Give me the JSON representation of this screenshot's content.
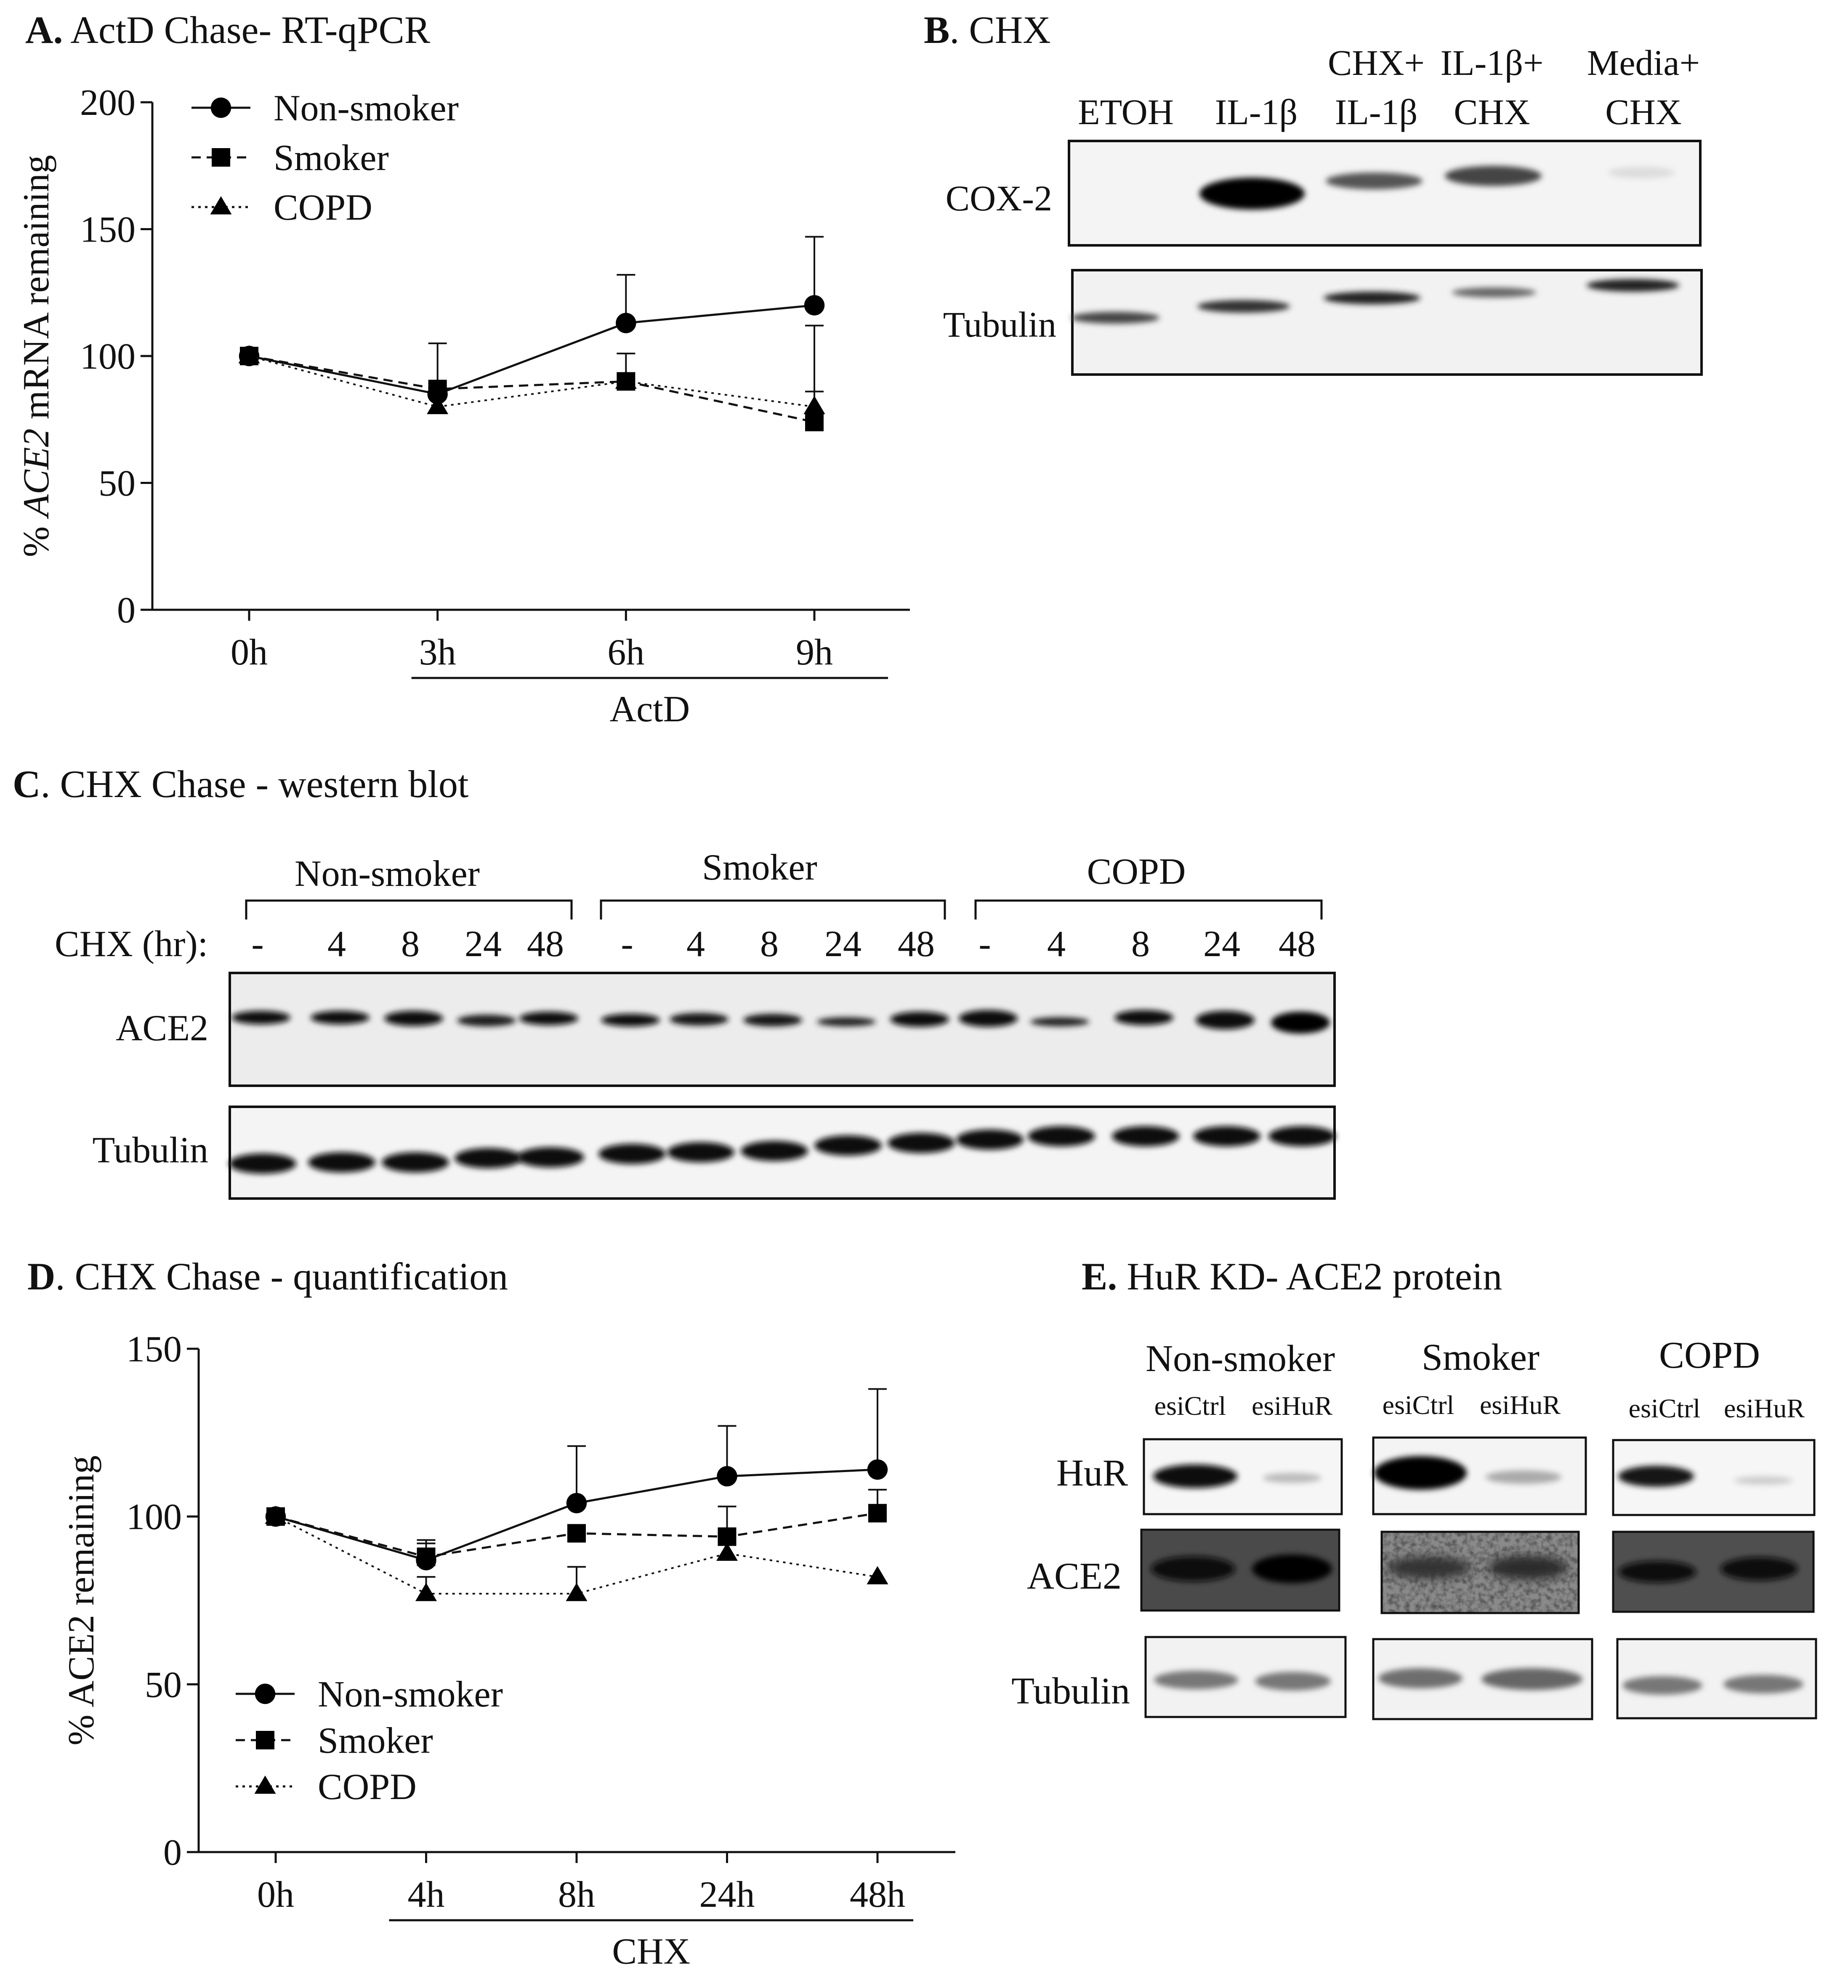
{
  "panels": {
    "A": {
      "letter": "A.",
      "title": "ActD Chase- RT-qPCR"
    },
    "B": {
      "letter": "B",
      "title": ". CHX"
    },
    "C": {
      "letter": "C",
      "title": ". CHX Chase - western blot"
    },
    "D": {
      "letter": "D",
      "title": ". CHX Chase - quantification"
    },
    "E": {
      "letter": "E.",
      "title": "HuR KD- ACE2 protein"
    }
  },
  "chart_data": [
    {
      "id": "A",
      "type": "line",
      "ylabel_prefix": "% ",
      "ylabel_italic": "ACE2",
      "ylabel_suffix": " mRNA remaining",
      "ylim": [
        0,
        200
      ],
      "yticks": [
        "0",
        "50",
        "100",
        "150",
        "200"
      ],
      "categories": [
        "0h",
        "3h",
        "6h",
        "9h"
      ],
      "group_label": "ActD",
      "series": [
        {
          "name": "Non-smoker",
          "marker": "circle",
          "dash": "solid",
          "values": [
            100,
            85,
            113,
            120
          ],
          "err": [
            0,
            20,
            19,
            27
          ]
        },
        {
          "name": "Smoker",
          "marker": "square",
          "dash": "dashed",
          "values": [
            100,
            87,
            90,
            74
          ],
          "err": [
            0,
            0,
            11,
            12
          ]
        },
        {
          "name": "COPD",
          "marker": "triangle",
          "dash": "dotted",
          "values": [
            100,
            80,
            90,
            80
          ],
          "err": [
            0,
            0,
            0,
            32
          ]
        }
      ]
    },
    {
      "id": "D",
      "type": "line",
      "ylabel": "% ACE2 remaining",
      "ylim": [
        0,
        150
      ],
      "yticks": [
        "0",
        "50",
        "100",
        "150"
      ],
      "categories": [
        "0h",
        "4h",
        "8h",
        "24h",
        "48h"
      ],
      "group_label": "CHX",
      "series": [
        {
          "name": "Non-smoker",
          "marker": "circle",
          "dash": "solid",
          "values": [
            100,
            87,
            104,
            112,
            114
          ],
          "err": [
            0,
            5,
            17,
            15,
            24
          ]
        },
        {
          "name": "Smoker",
          "marker": "square",
          "dash": "dashed",
          "values": [
            100,
            88,
            95,
            94,
            101
          ],
          "err": [
            0,
            5,
            0,
            9,
            7
          ]
        },
        {
          "name": "COPD",
          "marker": "triangle",
          "dash": "dotted",
          "values": [
            100,
            77,
            77,
            89,
            82
          ],
          "err": [
            0,
            5,
            8,
            0,
            0
          ]
        }
      ]
    }
  ],
  "blotB": {
    "headers": [
      {
        "line1": "",
        "line2": "ETOH"
      },
      {
        "line1": "",
        "line2": "IL-1β"
      },
      {
        "line1": "CHX+",
        "line2": "IL-1β"
      },
      {
        "line1": "IL-1β+",
        "line2": "CHX"
      },
      {
        "line1": "Media+",
        "line2": "CHX"
      }
    ],
    "rows": [
      "COX-2",
      "Tubulin"
    ]
  },
  "blotC": {
    "groups": [
      "Non-smoker",
      "Smoker",
      "COPD"
    ],
    "row_label": "CHX (hr):",
    "lanes": [
      "-",
      "4",
      "8",
      "24",
      "48",
      "-",
      "4",
      "8",
      "24",
      "48",
      "-",
      "4",
      "8",
      "24",
      "48"
    ],
    "rows": [
      "ACE2",
      "Tubulin"
    ]
  },
  "blotE": {
    "groups": [
      "Non-smoker",
      "Smoker",
      "COPD"
    ],
    "lanes": [
      "esiCtrl",
      "esiHuR"
    ],
    "rows": [
      "HuR",
      "ACE2",
      "Tubulin"
    ]
  }
}
